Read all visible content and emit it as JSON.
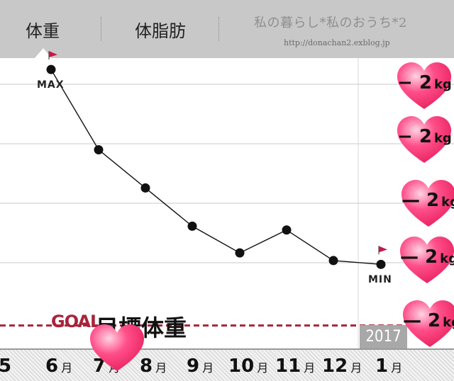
{
  "tabs": [
    {
      "label": "体重",
      "selected": true
    },
    {
      "label": "体脂肪",
      "selected": false
    }
  ],
  "blog": {
    "title": "私の暮らし*私のおうち*2",
    "url": "http://donachan2.exblog.jp"
  },
  "chart_data": {
    "type": "line",
    "categories": [
      "6月",
      "7月",
      "8月",
      "9月",
      "10月",
      "11月",
      "12月",
      "1月"
    ],
    "values": [
      67.7,
      65.6,
      64.6,
      63.6,
      62.9,
      63.5,
      62.7,
      62.6
    ],
    "ylim": [
      60.4,
      68.0
    ],
    "grid": true,
    "goal": 61.0,
    "max_label": "MAX",
    "min_label": "MIN",
    "max_index": 0,
    "min_index": 7,
    "year_marker": {
      "label": "2017",
      "index": 7
    },
    "goal_label": "GOAL",
    "goal_caption": "目標体重",
    "left_edge_tick": "5",
    "month_suffix": "月",
    "month_numbers": [
      "6",
      "7",
      "8",
      "9",
      "10",
      "11",
      "12",
      "1"
    ],
    "annotations": [
      {
        "text": "− 2",
        "unit": "kg"
      },
      {
        "text": "− 2",
        "unit": "kg"
      },
      {
        "text": "— 2",
        "unit": "kg"
      },
      {
        "text": "— 2",
        "unit": "kg"
      },
      {
        "text": "— 2",
        "unit": "kg"
      }
    ],
    "colors": {
      "line": "#111111",
      "goal": "#a8243b",
      "flag": "#c8184a",
      "heart": "#ff4f8a"
    }
  }
}
